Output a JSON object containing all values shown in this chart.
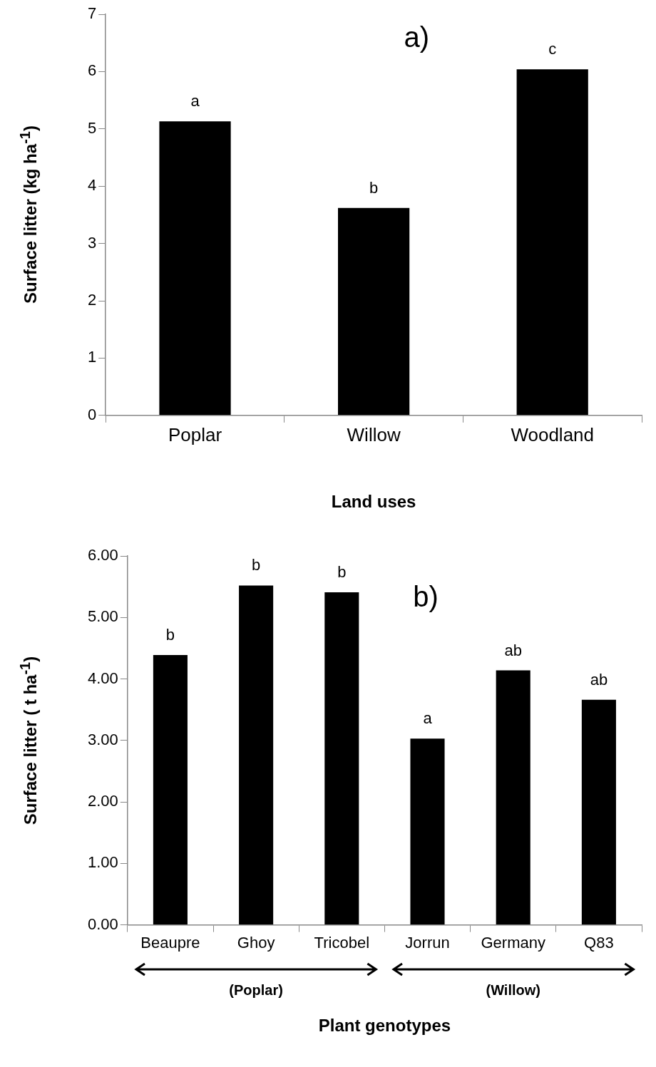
{
  "chart_data": [
    {
      "type": "bar",
      "title": "a)",
      "xlabel": "Land uses",
      "ylabel": "Surface litter (kg ha$^{-1}$)",
      "categories": [
        "Poplar",
        "Willow",
        "Woodland"
      ],
      "values": [
        5.13,
        3.62,
        6.04
      ],
      "color": "#000000",
      "ylim": [
        0,
        7
      ],
      "yticks": [
        0,
        1,
        2,
        3,
        4,
        5,
        6,
        7
      ],
      "grid": false,
      "legend": false,
      "annotations": [
        {
          "text": "a",
          "x": "Poplar",
          "y": 5.13
        },
        {
          "text": "b",
          "x": "Willow",
          "y": 3.62
        },
        {
          "text": "c",
          "x": "Woodland",
          "y": 6.04
        }
      ]
    },
    {
      "type": "bar",
      "title": "b)",
      "xlabel": "Plant genotypes",
      "ylabel": "Surface litter ( t ha$^{-1}$)",
      "categories": [
        "Beaupre",
        "Ghoy",
        "Tricobel",
        "Jorrun",
        "Germany",
        "Q83"
      ],
      "values": [
        4.39,
        5.52,
        5.41,
        3.03,
        4.14,
        3.66
      ],
      "color": "#000000",
      "ylim": [
        0,
        6
      ],
      "yticks": [
        {
          "value": 0,
          "label": "0.00"
        },
        {
          "value": 1,
          "label": "1.00"
        },
        {
          "value": 2,
          "label": "2.00"
        },
        {
          "value": 3,
          "label": "3.00"
        },
        {
          "value": 4,
          "label": "4.00"
        },
        {
          "value": 5,
          "label": "5.00"
        },
        {
          "value": 6,
          "label": "6.00"
        }
      ],
      "grid": false,
      "legend": false,
      "annotations": [
        {
          "text": "b",
          "x": "Beaupre",
          "y": 4.39
        },
        {
          "text": "b",
          "x": "Ghoy",
          "y": 5.52
        },
        {
          "text": "b",
          "x": "Tricobel",
          "y": 5.41
        },
        {
          "text": "a",
          "x": "Jorrun",
          "y": 3.03
        },
        {
          "text": "ab",
          "x": "Germany",
          "y": 4.14
        },
        {
          "text": "ab",
          "x": "Q83",
          "y": 3.66
        },
        "(Poplar)",
        "(Willow)"
      ]
    }
  ]
}
